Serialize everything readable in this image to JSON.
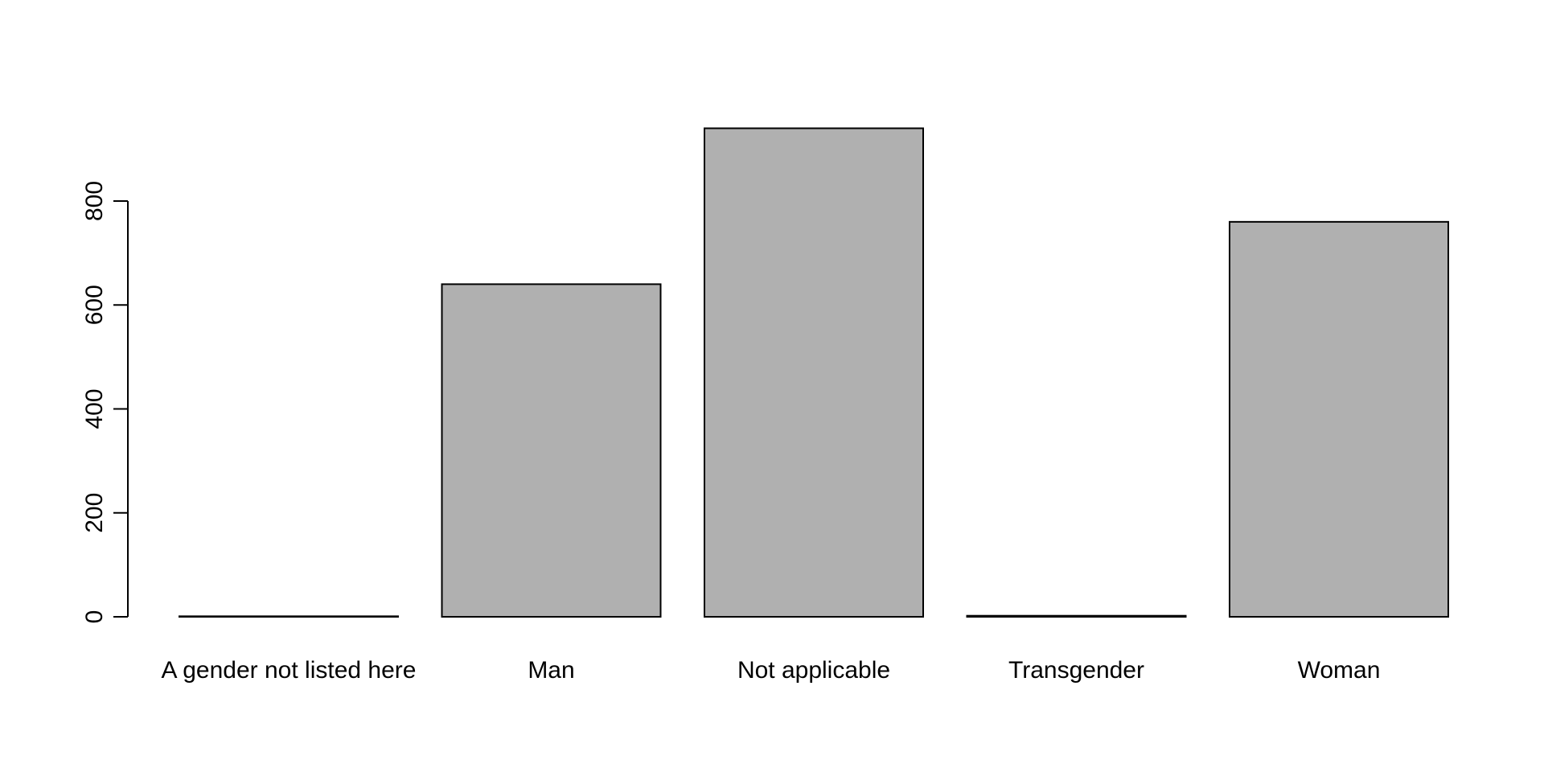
{
  "chart_data": {
    "type": "bar",
    "categories": [
      "A gender not listed here",
      "Man",
      "Not applicable",
      "Transgender",
      "Woman"
    ],
    "values": [
      1,
      640,
      940,
      2,
      760
    ],
    "yticks": [
      "0",
      "200",
      "400",
      "600",
      "800"
    ],
    "ylim": [
      0,
      940
    ],
    "title": "",
    "xlabel": "",
    "ylabel": "",
    "bar_fill": "#b0b0b0",
    "bar_stroke": "#000000",
    "grid": false
  }
}
